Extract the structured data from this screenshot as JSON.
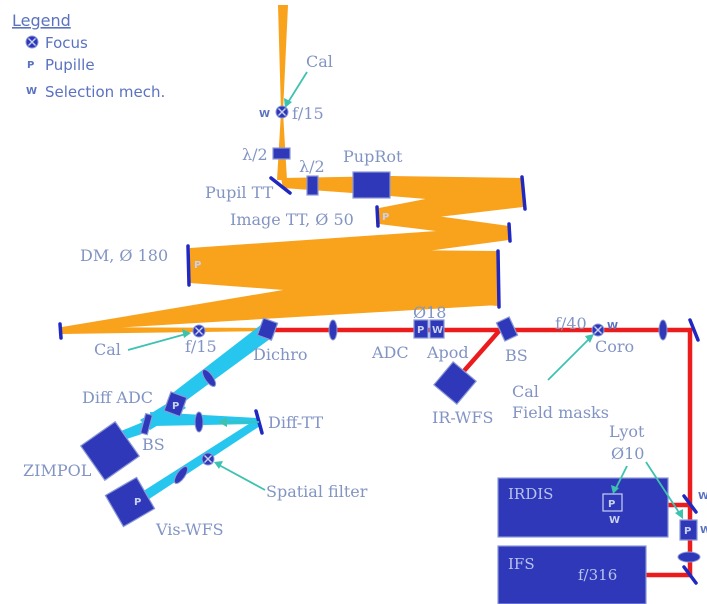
{
  "legend": {
    "title": "Legend",
    "focus": "Focus",
    "pupil": "Pupille",
    "selection": "Selection mech.",
    "pupil_glyph": "P",
    "selection_glyph": "W"
  },
  "labels": {
    "cal_top": "Cal",
    "f15_top": "f/15",
    "w_top": "W",
    "half_wave_1": "λ/2",
    "half_wave_2": "λ/2",
    "puprot": "PupRot",
    "pupil_tt": "Pupil TT",
    "image_tt": "Image TT, Ø 50",
    "dm": "DM, Ø 180",
    "cal_mid": "Cal",
    "f15_mid": "f/15",
    "dichro": "Dichro",
    "adc": "ADC",
    "d18": "Ø18",
    "apod": "Apod",
    "bs_ir": "BS",
    "ir_wfs": "IR-WFS",
    "f40": "f/40",
    "w_coro": "W",
    "coro": "Coro",
    "cal_field": "Cal",
    "field_masks": "Field masks",
    "diff_adc": "Diff ADC",
    "bs_vis": "BS",
    "diff_tt": "Diff-TT",
    "zimpol": "ZIMPOL",
    "spatial_filter": "Spatial filter",
    "vis_wfs": "Vis-WFS",
    "lyot": "Lyot",
    "d10": "Ø10",
    "irdis": "IRDIS",
    "ifs": "IFS",
    "f316": "f/316",
    "w_right_1": "W",
    "w_right_2": "W"
  },
  "colors": {
    "common_path": "#f9a21c",
    "visible_path": "#26c6ef",
    "ir_path": "#ec1c1c",
    "component": "#2e38b8",
    "label": "#8294c4",
    "arrow": "#3ec2b0"
  }
}
